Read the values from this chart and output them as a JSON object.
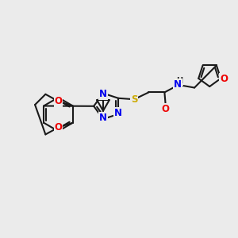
{
  "background_color": "#ebebeb",
  "bond_color": "#1a1a1a",
  "bond_width": 1.5,
  "atom_colors": {
    "N": "#0000ee",
    "O": "#ee0000",
    "S": "#ccaa00",
    "C": "#1a1a1a",
    "H": "#1a1a1a"
  },
  "font_size_atom": 8.5,
  "figsize": [
    3.0,
    3.0
  ],
  "dpi": 100
}
